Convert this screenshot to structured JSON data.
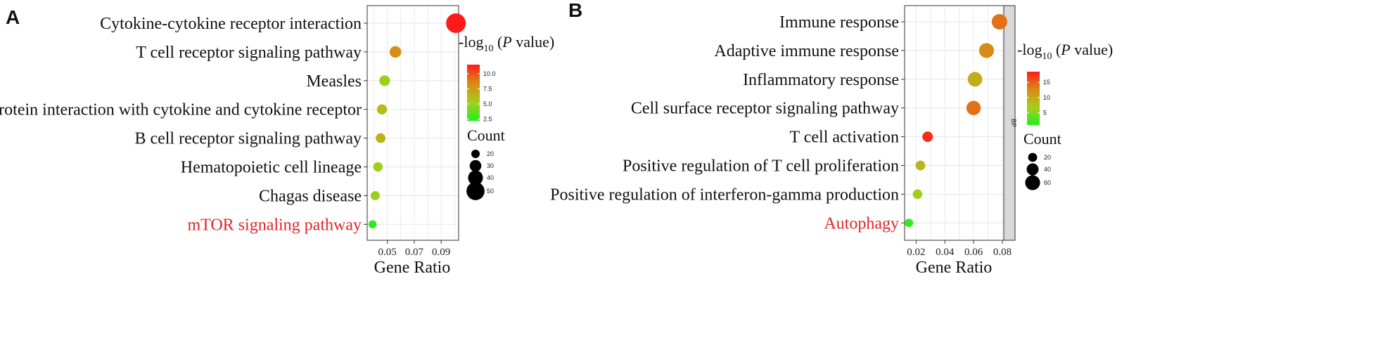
{
  "chart_data": [
    {
      "panel": "A",
      "type": "scatter",
      "xlabel": "Gene Ratio",
      "xlim": [
        0.035,
        0.103
      ],
      "xticks": [
        0.05,
        0.07,
        0.09
      ],
      "xtick_labels": [
        "0.05",
        "0.07",
        "0.09"
      ],
      "categories": [
        "Cytokine-cytokine receptor interaction",
        "T cell receptor signaling pathway",
        "Measles",
        "Viral protein interaction with cytokine and cytokine receptor",
        "B cell receptor signaling pathway",
        "Hematopoietic cell lineage",
        "Chagas disease",
        "mTOR signaling pathway"
      ],
      "highlight": [
        "mTOR signaling pathway"
      ],
      "points": [
        {
          "term": "Cytokine-cytokine receptor interaction",
          "gene_ratio": 0.101,
          "neg_log10_p": 11.5,
          "count": 55
        },
        {
          "term": "T cell receptor signaling pathway",
          "gene_ratio": 0.056,
          "neg_log10_p": 8.2,
          "count": 30
        },
        {
          "term": "Measles",
          "gene_ratio": 0.048,
          "neg_log10_p": 5.0,
          "count": 27
        },
        {
          "term": "Viral protein interaction with cytokine and cytokine receptor",
          "gene_ratio": 0.046,
          "neg_log10_p": 6.2,
          "count": 25
        },
        {
          "term": "B cell receptor signaling pathway",
          "gene_ratio": 0.045,
          "neg_log10_p": 6.5,
          "count": 24
        },
        {
          "term": "Hematopoietic cell lineage",
          "gene_ratio": 0.043,
          "neg_log10_p": 5.0,
          "count": 23
        },
        {
          "term": "Chagas disease",
          "gene_ratio": 0.041,
          "neg_log10_p": 5.0,
          "count": 22
        },
        {
          "term": "mTOR signaling pathway",
          "gene_ratio": 0.039,
          "neg_log10_p": 2.5,
          "count": 19
        }
      ],
      "color_legend": {
        "title": "-log",
        "title_sub": "10",
        "title_p": "P",
        "title_end": " value)",
        "title_open": "(",
        "min": 2.2,
        "max": 11.5,
        "ticks": [
          2.5,
          5.0,
          7.5,
          10.0
        ],
        "tick_labels": [
          "2.5",
          "5.0",
          "7.5",
          "10.0"
        ],
        "colors": [
          "#22ee22",
          "#a8cc1a",
          "#d98a16",
          "#ff1a1a"
        ]
      },
      "size_legend": {
        "title": "Count",
        "values": [
          20,
          30,
          40,
          50
        ],
        "labels": [
          "20",
          "30",
          "40",
          "50"
        ]
      }
    },
    {
      "panel": "B",
      "type": "scatter",
      "xlabel": "Gene Ratio",
      "xlim": [
        0.012,
        0.081
      ],
      "xticks": [
        0.02,
        0.04,
        0.06,
        0.08
      ],
      "xtick_labels": [
        "0.02",
        "0.04",
        "0.06",
        "0.08"
      ],
      "facet_label": "BP",
      "categories": [
        "Immune response",
        "Adaptive immune response",
        "Inflammatory response",
        "Cell surface receptor signaling pathway",
        "T cell activation",
        "Positive regulation of T cell proliferation",
        "Positive regulation of interferon-gamma production",
        "Autophagy"
      ],
      "highlight": [
        "Autophagy"
      ],
      "points": [
        {
          "term": "Immune response",
          "gene_ratio": 0.078,
          "neg_log10_p": 14.0,
          "count": 64
        },
        {
          "term": "Adaptive immune response",
          "gene_ratio": 0.069,
          "neg_log10_p": 12.5,
          "count": 60
        },
        {
          "term": "Inflammatory response",
          "gene_ratio": 0.061,
          "neg_log10_p": 9.5,
          "count": 58
        },
        {
          "term": "Cell surface receptor signaling pathway",
          "gene_ratio": 0.06,
          "neg_log10_p": 14.0,
          "count": 56
        },
        {
          "term": "T cell activation",
          "gene_ratio": 0.028,
          "neg_log10_p": 17.5,
          "count": 30
        },
        {
          "term": "Positive regulation of T cell proliferation",
          "gene_ratio": 0.023,
          "neg_log10_p": 9.0,
          "count": 25
        },
        {
          "term": "Positive regulation of interferon-gamma production",
          "gene_ratio": 0.021,
          "neg_log10_p": 6.5,
          "count": 23
        },
        {
          "term": "Autophagy",
          "gene_ratio": 0.015,
          "neg_log10_p": 2.0,
          "count": 16
        }
      ],
      "color_legend": {
        "title": "-log",
        "title_sub": "10",
        "title_p": "P",
        "title_end": " value)",
        "title_open": "(",
        "min": 1.0,
        "max": 18.5,
        "ticks": [
          5,
          10,
          15
        ],
        "tick_labels": [
          "5",
          "10",
          "15"
        ],
        "colors": [
          "#22ee22",
          "#a8cc1a",
          "#d98a16",
          "#ff1a1a"
        ]
      },
      "size_legend": {
        "title": "Count",
        "values": [
          20,
          40,
          60
        ],
        "labels": [
          "20",
          "40",
          "60"
        ]
      }
    }
  ]
}
